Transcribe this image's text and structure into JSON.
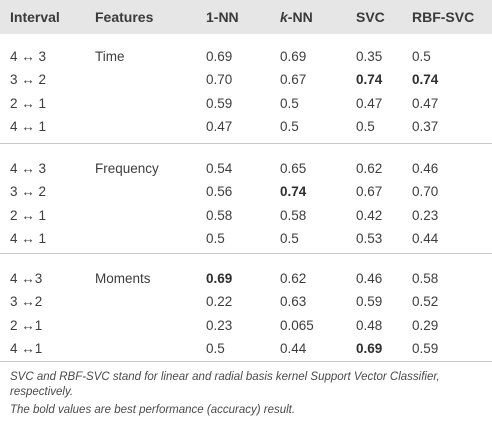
{
  "table": {
    "headers": {
      "interval": "Interval",
      "features": "Features",
      "nn1": "1-NN",
      "knn_k": "k",
      "knn_rest": "-NN",
      "svc": "SVC",
      "rbf": "RBF-SVC"
    },
    "groups": [
      {
        "feature": "Time",
        "rows": [
          {
            "interval": "4 ↔ 3",
            "nn1": "0.69",
            "knn": "0.69",
            "svc": "0.35",
            "rbf": "0.5",
            "bold": []
          },
          {
            "interval": "3 ↔ 2",
            "nn1": "0.70",
            "knn": "0.67",
            "svc": "0.74",
            "rbf": "0.74",
            "bold": [
              "svc",
              "rbf"
            ]
          },
          {
            "interval": "2 ↔ 1",
            "nn1": "0.59",
            "knn": "0.5",
            "svc": "0.47",
            "rbf": "0.47",
            "bold": []
          },
          {
            "interval": "4 ↔ 1",
            "nn1": "0.47",
            "knn": "0.5",
            "svc": "0.5",
            "rbf": "0.37",
            "bold": []
          }
        ]
      },
      {
        "feature": "Frequency",
        "rows": [
          {
            "interval": "4 ↔ 3",
            "nn1": "0.54",
            "knn": "0.65",
            "svc": "0.62",
            "rbf": "0.46",
            "bold": []
          },
          {
            "interval": "3 ↔ 2",
            "nn1": "0.56",
            "knn": "0.74",
            "svc": "0.67",
            "rbf": "0.70",
            "bold": [
              "knn"
            ]
          },
          {
            "interval": "2 ↔ 1",
            "nn1": "0.58",
            "knn": "0.58",
            "svc": "0.42",
            "rbf": "0.23",
            "bold": []
          },
          {
            "interval": "4 ↔ 1",
            "nn1": "0.5",
            "knn": "0.5",
            "svc": "0.53",
            "rbf": "0.44",
            "bold": []
          }
        ]
      },
      {
        "feature": "Moments",
        "rows": [
          {
            "interval": "4 ↔3",
            "nn1": "0.69",
            "knn": "0.62",
            "svc": "0.46",
            "rbf": "0.58",
            "bold": [
              "nn1"
            ]
          },
          {
            "interval": "3 ↔2",
            "nn1": "0.22",
            "knn": "0.63",
            "svc": "0.59",
            "rbf": "0.52",
            "bold": []
          },
          {
            "interval": "2 ↔1",
            "nn1": "0.23",
            "knn": "0.065",
            "svc": "0.48",
            "rbf": "0.29",
            "bold": []
          },
          {
            "interval": "4 ↔1",
            "nn1": "0.5",
            "knn": "0.44",
            "svc": "0.69",
            "rbf": "0.59",
            "bold": [
              "svc"
            ]
          }
        ]
      }
    ]
  },
  "footnotes": {
    "line1": "SVC and RBF-SVC stand for linear and radial basis kernel Support Vector Classifier,",
    "line2": "respectively.",
    "line3": "The bold values are best performance (accuracy) result."
  }
}
